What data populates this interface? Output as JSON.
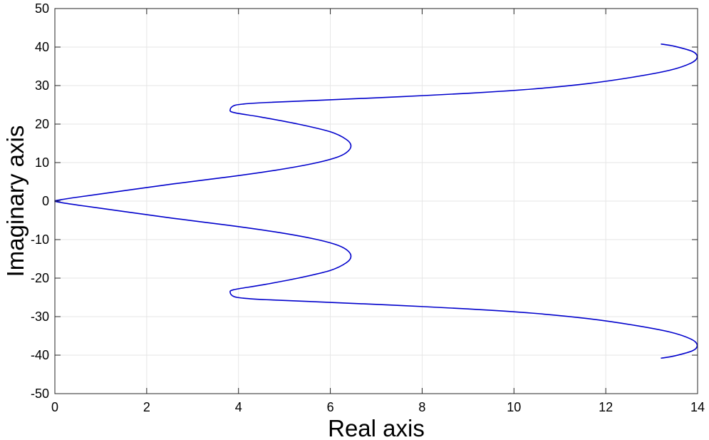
{
  "chart_data": {
    "type": "line",
    "title": "",
    "xlabel": "Real axis",
    "ylabel": "Imaginary axis",
    "xlim": [
      0,
      14
    ],
    "ylim": [
      -50,
      50
    ],
    "xticks": [
      0,
      2,
      4,
      6,
      8,
      10,
      12,
      14
    ],
    "yticks": [
      -50,
      -40,
      -30,
      -20,
      -10,
      0,
      10,
      20,
      30,
      40,
      50
    ],
    "xtick_labels": [
      "0",
      "2",
      "4",
      "6",
      "8",
      "10",
      "12",
      "14"
    ],
    "ytick_labels": [
      "-50",
      "-40",
      "-30",
      "-20",
      "-10",
      "0",
      "10",
      "20",
      "30",
      "40",
      "50"
    ],
    "grid": true,
    "legend": false,
    "colors": {
      "series": "#0000cc",
      "grid": "#e6e6e6",
      "axes": "#262626",
      "background": "#ffffff"
    },
    "series": [
      {
        "x": [
          13.2,
          13.5,
          13.9,
          13.99,
          13.85,
          13.4,
          12.6,
          11.6,
          10.4,
          9.0,
          7.5,
          6.0,
          4.6,
          4.1,
          3.9,
          3.82,
          3.9,
          4.5,
          5.3,
          6.0,
          6.35,
          6.45,
          6.35,
          6.1,
          5.6,
          4.8,
          3.8,
          2.6,
          1.5,
          0.6,
          0.15,
          0.0,
          0.15,
          0.6,
          1.5,
          2.6,
          3.8,
          4.8,
          5.6,
          6.1,
          6.35,
          6.45,
          6.35,
          6.0,
          5.3,
          4.5,
          3.9,
          3.82,
          3.9,
          4.1,
          4.6,
          6.0,
          7.5,
          9.0,
          10.4,
          11.6,
          12.6,
          13.4,
          13.85,
          13.99,
          13.9,
          13.5,
          13.2
        ],
        "y": [
          40.8,
          40.2,
          38.8,
          37.3,
          35.8,
          34.0,
          32.2,
          30.5,
          29.1,
          28.0,
          27.1,
          26.3,
          25.6,
          25.2,
          24.8,
          23.8,
          23.0,
          21.8,
          20.0,
          18.0,
          16.0,
          14.3,
          12.6,
          11.2,
          9.7,
          8.0,
          6.3,
          4.5,
          2.7,
          1.2,
          0.4,
          0.0,
          -0.4,
          -1.2,
          -2.7,
          -4.5,
          -6.3,
          -8.0,
          -9.7,
          -11.2,
          -12.6,
          -14.3,
          -16.0,
          -18.0,
          -20.0,
          -21.8,
          -23.0,
          -23.8,
          -24.8,
          -25.2,
          -25.6,
          -26.3,
          -27.1,
          -28.0,
          -29.1,
          -30.5,
          -32.2,
          -34.0,
          -35.8,
          -37.3,
          -38.8,
          -40.2,
          -40.8
        ]
      }
    ]
  }
}
